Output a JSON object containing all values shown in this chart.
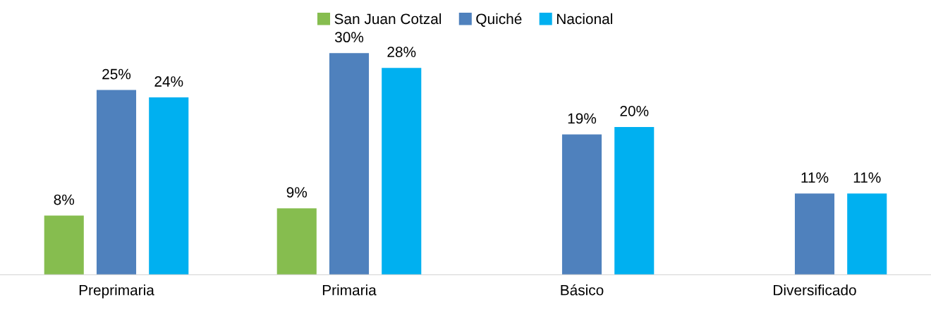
{
  "chart_data": {
    "type": "bar",
    "categories": [
      "Preprimaria",
      "Primaria",
      "Básico",
      "Diversificado"
    ],
    "series": [
      {
        "name": "San Juan Cotzal",
        "color": "#86bd4f",
        "values": [
          8,
          9,
          null,
          null
        ],
        "value_labels": [
          "8%",
          "9%",
          null,
          null
        ]
      },
      {
        "name": "Quiché",
        "color": "#4f81bd",
        "values": [
          25,
          30,
          19,
          11
        ],
        "value_labels": [
          "25%",
          "30%",
          "19%",
          "11%"
        ]
      },
      {
        "name": "Nacional",
        "color": "#00b0f0",
        "values": [
          24,
          28,
          20,
          11
        ],
        "value_labels": [
          "24%",
          "28%",
          "20%",
          "11%"
        ]
      }
    ],
    "legend": "top",
    "grid": false
  }
}
